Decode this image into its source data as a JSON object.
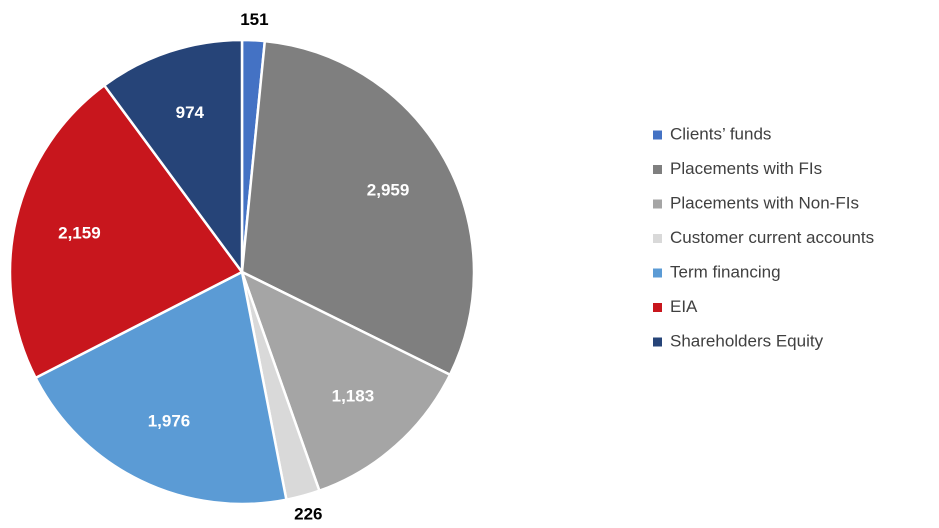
{
  "chart_data": {
    "type": "pie",
    "categories": [
      "Clients’ funds",
      "Placements with FIs",
      "Placements with Non-FIs",
      "Customer current accounts",
      "Term financing",
      "EIA",
      "Shareholders Equity"
    ],
    "values": [
      151,
      2959,
      1183,
      226,
      1976,
      2159,
      974
    ],
    "value_labels": [
      "151",
      "2,959",
      "1,183",
      "226",
      "1,976",
      "2,159",
      "974"
    ],
    "colors": [
      "#4472c4",
      "#7f7f7f",
      "#a5a5a5",
      "#d9d9d9",
      "#5b9bd5",
      "#c8161d",
      "#264478"
    ],
    "legend": "right"
  }
}
